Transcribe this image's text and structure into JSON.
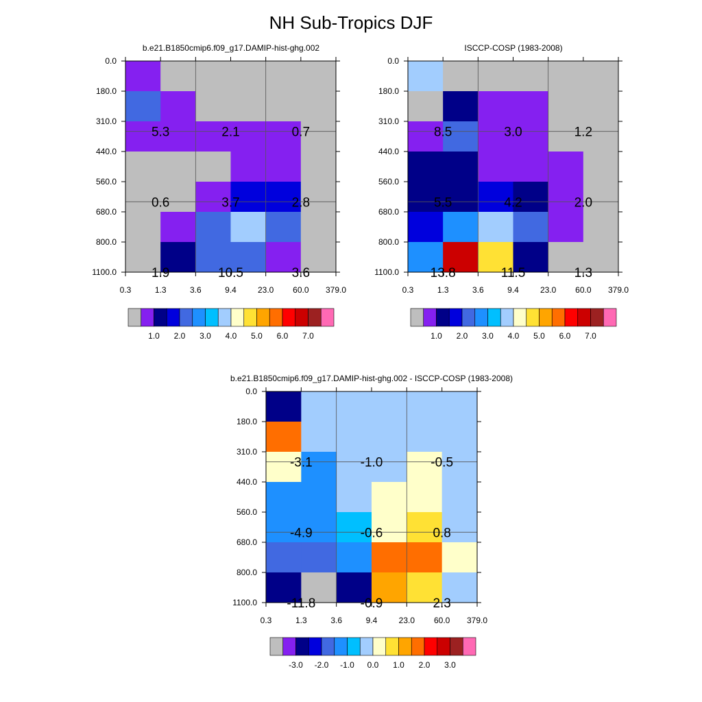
{
  "title": "NH Sub-Tropics DJF",
  "palette": {
    "gray": "#bebebe",
    "violet": "#8520f0",
    "navy": "#000088",
    "blue": "#0000dd",
    "royal": "#4169e1",
    "dodger": "#1e90ff",
    "sky": "#00bfff",
    "lightblue": "#a2cdfe",
    "cream": "#ffffca",
    "yellow": "#ffe134",
    "orange": "#ffa500",
    "darkorange": "#ff6e00",
    "red": "#ff0000",
    "darkred": "#cc0000",
    "brown": "#9c2121",
    "pink": "#ff69b4"
  },
  "colorbar_colors": [
    "gray",
    "violet",
    "navy",
    "blue",
    "royal",
    "dodger",
    "sky",
    "lightblue",
    "cream",
    "yellow",
    "orange",
    "darkorange",
    "red",
    "darkred",
    "brown",
    "pink"
  ],
  "chart_data": [
    {
      "type": "heatmap",
      "title": "b.e21.B1850cmip6.f09_g17.DAMIP-hist-ghg.002",
      "x_ticks": [
        "0.3",
        "1.3",
        "3.6",
        "9.4",
        "23.0",
        "60.0",
        "379.0"
      ],
      "y_ticks": [
        "0.0",
        "180.0",
        "310.0",
        "440.0",
        "560.0",
        "680.0",
        "800.0",
        "1100.0"
      ],
      "cells": [
        [
          "violet",
          "gray",
          "gray",
          "gray",
          "gray",
          "gray"
        ],
        [
          "royal",
          "violet",
          "gray",
          "gray",
          "gray",
          "gray"
        ],
        [
          "violet",
          "violet",
          "violet",
          "violet",
          "violet",
          "gray"
        ],
        [
          "gray",
          "gray",
          "gray",
          "violet",
          "violet",
          "gray"
        ],
        [
          "gray",
          "gray",
          "violet",
          "blue",
          "blue",
          "gray"
        ],
        [
          "gray",
          "violet",
          "royal",
          "lightblue",
          "royal",
          "gray"
        ],
        [
          "gray",
          "navy",
          "royal",
          "royal",
          "violet",
          "gray"
        ]
      ],
      "labels": [
        {
          "value": "5.3",
          "col": 0,
          "row": 1
        },
        {
          "value": "2.1",
          "col": 1,
          "row": 1
        },
        {
          "value": "0.7",
          "col": 2,
          "row": 1
        },
        {
          "value": "0.6",
          "col": 0,
          "row": 2
        },
        {
          "value": "3.7",
          "col": 1,
          "row": 2
        },
        {
          "value": "2.8",
          "col": 2,
          "row": 2
        },
        {
          "value": "1.9",
          "col": 0,
          "row": 3
        },
        {
          "value": "10.5",
          "col": 1,
          "row": 3
        },
        {
          "value": "3.6",
          "col": 2,
          "row": 3
        }
      ],
      "colorbar_labels": [
        "1.0",
        "2.0",
        "3.0",
        "4.0",
        "5.0",
        "6.0",
        "7.0"
      ]
    },
    {
      "type": "heatmap",
      "title": "ISCCP-COSP (1983-2008)",
      "x_ticks": [
        "0.3",
        "1.3",
        "3.6",
        "9.4",
        "23.0",
        "60.0",
        "379.0"
      ],
      "y_ticks": [
        "0.0",
        "180.0",
        "310.0",
        "440.0",
        "560.0",
        "680.0",
        "800.0",
        "1100.0"
      ],
      "cells": [
        [
          "lightblue",
          "gray",
          "gray",
          "gray",
          "gray",
          "gray"
        ],
        [
          "gray",
          "navy",
          "violet",
          "violet",
          "gray",
          "gray"
        ],
        [
          "violet",
          "royal",
          "violet",
          "violet",
          "gray",
          "gray"
        ],
        [
          "navy",
          "navy",
          "violet",
          "violet",
          "violet",
          "gray"
        ],
        [
          "navy",
          "navy",
          "blue",
          "navy",
          "violet",
          "gray"
        ],
        [
          "blue",
          "dodger",
          "lightblue",
          "royal",
          "violet",
          "gray"
        ],
        [
          "dodger",
          "darkred",
          "yellow",
          "navy",
          "gray",
          "gray"
        ]
      ],
      "labels": [
        {
          "value": "8.5",
          "col": 0,
          "row": 1
        },
        {
          "value": "3.0",
          "col": 1,
          "row": 1
        },
        {
          "value": "1.2",
          "col": 2,
          "row": 1
        },
        {
          "value": "5.5",
          "col": 0,
          "row": 2
        },
        {
          "value": "4.2",
          "col": 1,
          "row": 2
        },
        {
          "value": "2.0",
          "col": 2,
          "row": 2
        },
        {
          "value": "13.8",
          "col": 0,
          "row": 3
        },
        {
          "value": "11.5",
          "col": 1,
          "row": 3
        },
        {
          "value": "1.3",
          "col": 2,
          "row": 3
        }
      ],
      "colorbar_labels": [
        "1.0",
        "2.0",
        "3.0",
        "4.0",
        "5.0",
        "6.0",
        "7.0"
      ]
    },
    {
      "type": "heatmap",
      "title": "b.e21.B1850cmip6.f09_g17.DAMIP-hist-ghg.002 - ISCCP-COSP (1983-2008)",
      "x_ticks": [
        "0.3",
        "1.3",
        "3.6",
        "9.4",
        "23.0",
        "60.0",
        "379.0"
      ],
      "y_ticks": [
        "0.0",
        "180.0",
        "310.0",
        "440.0",
        "560.0",
        "680.0",
        "800.0",
        "1100.0"
      ],
      "cells": [
        [
          "navy",
          "lightblue",
          "lightblue",
          "lightblue",
          "lightblue",
          "lightblue"
        ],
        [
          "darkorange",
          "lightblue",
          "lightblue",
          "lightblue",
          "lightblue",
          "lightblue"
        ],
        [
          "cream",
          "dodger",
          "lightblue",
          "lightblue",
          "cream",
          "lightblue"
        ],
        [
          "dodger",
          "dodger",
          "lightblue",
          "cream",
          "cream",
          "lightblue"
        ],
        [
          "dodger",
          "dodger",
          "sky",
          "cream",
          "yellow",
          "lightblue"
        ],
        [
          "royal",
          "royal",
          "dodger",
          "darkorange",
          "darkorange",
          "cream"
        ],
        [
          "navy",
          "gray",
          "navy",
          "orange",
          "yellow",
          "lightblue"
        ]
      ],
      "labels": [
        {
          "value": "-3.1",
          "col": 0,
          "row": 1
        },
        {
          "value": "-1.0",
          "col": 1,
          "row": 1
        },
        {
          "value": "-0.5",
          "col": 2,
          "row": 1
        },
        {
          "value": "-4.9",
          "col": 0,
          "row": 2
        },
        {
          "value": "-0.6",
          "col": 1,
          "row": 2
        },
        {
          "value": "0.8",
          "col": 2,
          "row": 2
        },
        {
          "value": "-11.8",
          "col": 0,
          "row": 3
        },
        {
          "value": "-0.9",
          "col": 1,
          "row": 3
        },
        {
          "value": "2.3",
          "col": 2,
          "row": 3
        }
      ],
      "colorbar_labels": [
        "-3.0",
        "-2.0",
        "-1.0",
        "0.0",
        "1.0",
        "2.0",
        "3.0"
      ]
    }
  ]
}
